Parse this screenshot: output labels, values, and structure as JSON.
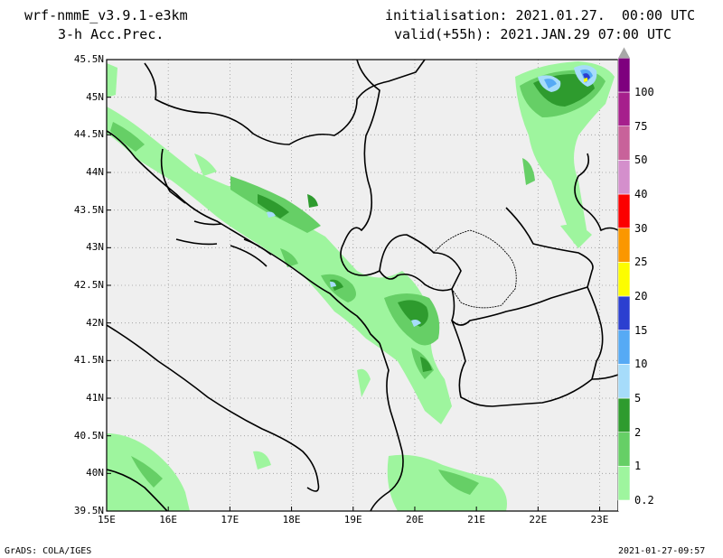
{
  "header": {
    "model": "wrf-nmmE_v3.9.1-e3km",
    "field": "3-h Acc.Prec.",
    "init": "initialisation: 2021.01.27.  00:00 UTC",
    "valid": "valid(+55h): 2021.JAN.29 07:00 UTC"
  },
  "footer": {
    "left": "GrADS: COLA/IGES",
    "right": "2021-01-27-09:57"
  },
  "map": {
    "lon_range": [
      15,
      23.3
    ],
    "lat_range": [
      39.5,
      45.5
    ],
    "lon_ticks": [
      {
        "v": 15,
        "t": "15E"
      },
      {
        "v": 16,
        "t": "16E"
      },
      {
        "v": 17,
        "t": "17E"
      },
      {
        "v": 18,
        "t": "18E"
      },
      {
        "v": 19,
        "t": "19E"
      },
      {
        "v": 20,
        "t": "20E"
      },
      {
        "v": 21,
        "t": "21E"
      },
      {
        "v": 22,
        "t": "22E"
      },
      {
        "v": 23,
        "t": "23E"
      }
    ],
    "lat_ticks": [
      {
        "v": 45.5,
        "t": "45.5N"
      },
      {
        "v": 45,
        "t": "45N"
      },
      {
        "v": 44.5,
        "t": "44.5N"
      },
      {
        "v": 44,
        "t": "44N"
      },
      {
        "v": 43.5,
        "t": "43.5N"
      },
      {
        "v": 43,
        "t": "43N"
      },
      {
        "v": 42.5,
        "t": "42.5N"
      },
      {
        "v": 42,
        "t": "42N"
      },
      {
        "v": 41.5,
        "t": "41.5N"
      },
      {
        "v": 41,
        "t": "41N"
      },
      {
        "v": 40.5,
        "t": "40.5N"
      },
      {
        "v": 40,
        "t": "40N"
      },
      {
        "v": 39.5,
        "t": "39.5N"
      }
    ],
    "background_color": "#efefef",
    "grid": true
  },
  "legend": {
    "levels": [
      "0.2",
      "1",
      "2",
      "5",
      "10",
      "15",
      "20",
      "25",
      "30",
      "40",
      "50",
      "75",
      "100"
    ],
    "colors": [
      "#9ef59e",
      "#66cf66",
      "#2e9b2e",
      "#a6dcfa",
      "#56aaf5",
      "#2b3fd0",
      "#fdfd00",
      "#fb9700",
      "#fc0000",
      "#d48fcc",
      "#c8629a",
      "#a61f8c",
      "#7e007e",
      "#a8a8a8"
    ]
  }
}
